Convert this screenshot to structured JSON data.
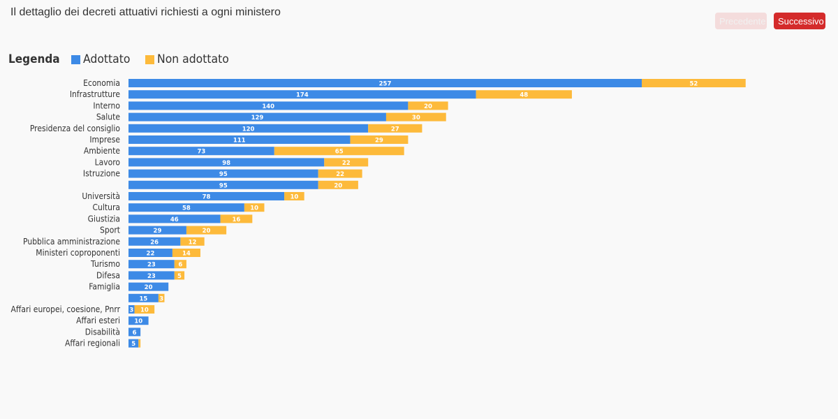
{
  "title": "Il dettaglio dei decreti attuativi richiesti a ogni ministero",
  "nav": {
    "prev_label": "Precedente",
    "next_label": "Successivo"
  },
  "legend": {
    "title": "Legenda",
    "items": [
      {
        "label": "Adottato",
        "color": "#3d8ae6"
      },
      {
        "label": "Non adottato",
        "color": "#fdba3b"
      }
    ]
  },
  "chart_data": {
    "type": "bar",
    "orientation": "horizontal",
    "stacked": true,
    "categories": [
      "Economia",
      "Infrastrutture",
      "Interno",
      "Salute",
      "Presidenza del consiglio",
      "Imprese",
      "Ambiente",
      "Lavoro",
      "Istruzione",
      "",
      "Università",
      "Cultura",
      "Giustizia",
      "Sport",
      "Pubblica amministrazione",
      "Ministeri coproponenti",
      "Turismo",
      "Difesa",
      "Famiglia",
      "",
      "Affari europei, coesione, Pnrr",
      "Affari esteri",
      "Disabilità",
      "Affari regionali"
    ],
    "series": [
      {
        "name": "Adottato",
        "color": "#3d8ae6",
        "values": [
          257,
          174,
          140,
          129,
          120,
          111,
          73,
          98,
          95,
          95,
          78,
          58,
          46,
          29,
          26,
          22,
          23,
          23,
          20,
          15,
          3,
          10,
          6,
          5
        ]
      },
      {
        "name": "Non adottato",
        "color": "#fdba3b",
        "values": [
          52,
          48,
          20,
          30,
          27,
          29,
          65,
          22,
          22,
          20,
          10,
          10,
          16,
          20,
          12,
          14,
          6,
          5,
          0,
          3,
          10,
          0,
          0,
          1
        ]
      }
    ],
    "grid": false,
    "legend_position": "top-left"
  }
}
